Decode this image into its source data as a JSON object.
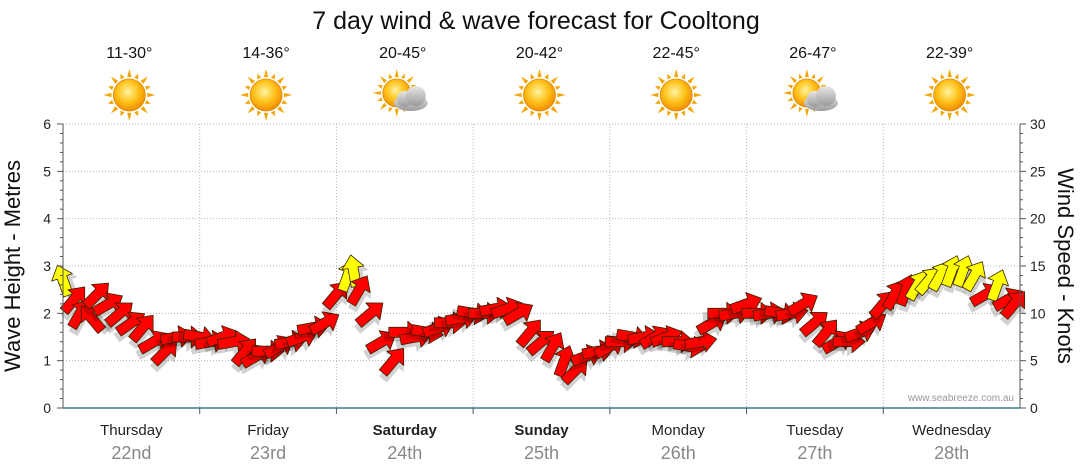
{
  "chart_data": {
    "type": "line",
    "title": "7 day wind & wave forecast for Cooltong",
    "ylabel": "Wave Height - Metres",
    "y2label": "Wind Speed - Knots",
    "ylim": [
      0,
      6
    ],
    "y2lim": [
      0,
      30
    ],
    "yticks": [
      0,
      1,
      2,
      3,
      4,
      5,
      6
    ],
    "y2ticks": [
      0,
      5,
      10,
      15,
      20,
      25,
      30
    ],
    "days": [
      {
        "name": "Thursday",
        "date": "22nd",
        "temp": "11-30°",
        "icon": "sun-icon",
        "bold": false
      },
      {
        "name": "Friday",
        "date": "23rd",
        "temp": "14-36°",
        "icon": "sun-icon",
        "bold": false
      },
      {
        "name": "Saturday",
        "date": "24th",
        "temp": "20-45°",
        "icon": "sun-cloud-icon",
        "bold": true
      },
      {
        "name": "Sunday",
        "date": "25th",
        "temp": "20-42°",
        "icon": "sun-icon",
        "bold": true
      },
      {
        "name": "Monday",
        "date": "26th",
        "temp": "22-45°",
        "icon": "sun-icon",
        "bold": false
      },
      {
        "name": "Tuesday",
        "date": "27th",
        "temp": "26-47°",
        "icon": "sun-cloud-icon",
        "bold": false
      },
      {
        "name": "Wednesday",
        "date": "28th",
        "temp": "22-39°",
        "icon": "sun-icon",
        "bold": false
      }
    ],
    "series": [
      {
        "name": "Wind Speed (knots)",
        "unit": "knots",
        "time_hours": [
          0,
          2,
          3,
          5,
          6,
          8,
          10,
          12,
          14,
          16,
          18,
          20,
          22,
          24,
          26,
          28,
          30,
          32,
          34,
          36,
          38,
          40,
          42,
          44,
          46,
          48,
          50,
          51,
          52,
          54,
          56,
          58,
          60,
          62,
          64,
          66,
          68,
          70,
          72,
          74,
          76,
          78,
          80,
          82,
          84,
          86,
          88,
          90,
          92,
          94,
          96,
          98,
          100,
          102,
          104,
          106,
          108,
          110,
          112,
          114,
          116,
          118,
          120,
          122,
          124,
          126,
          128,
          130,
          132,
          134,
          136,
          138,
          140,
          142,
          144,
          146,
          148,
          150,
          152,
          154,
          156,
          158,
          160,
          162,
          164,
          166,
          167
        ],
        "values": [
          13.5,
          11.5,
          10,
          9.5,
          12,
          11,
          10,
          9,
          8.5,
          7,
          6,
          7.5,
          7.5,
          7.5,
          7,
          7.5,
          7,
          6,
          5.5,
          6,
          6.5,
          7,
          7.5,
          8.5,
          9,
          12,
          14,
          14.5,
          12.5,
          10,
          7,
          5,
          8,
          7.5,
          8,
          8.5,
          9,
          9.5,
          10,
          10,
          10.5,
          10.5,
          10,
          8,
          7,
          6.5,
          5,
          4,
          5.5,
          6,
          6.5,
          7,
          7.5,
          7.5,
          7.5,
          7.5,
          7,
          6.5,
          7,
          9,
          10,
          10,
          11,
          10,
          10,
          10,
          10,
          11,
          9,
          8,
          7,
          7,
          8,
          9,
          11,
          12,
          12.5,
          13,
          13.5,
          14,
          14.5,
          14.5,
          14,
          12,
          13,
          11.5,
          11
        ],
        "colors": {
          "strong": "#ff0000",
          "light": "#ffff00"
        },
        "light_threshold_knots": 12.5
      }
    ]
  },
  "credit": "www.seabreeze.com.au"
}
